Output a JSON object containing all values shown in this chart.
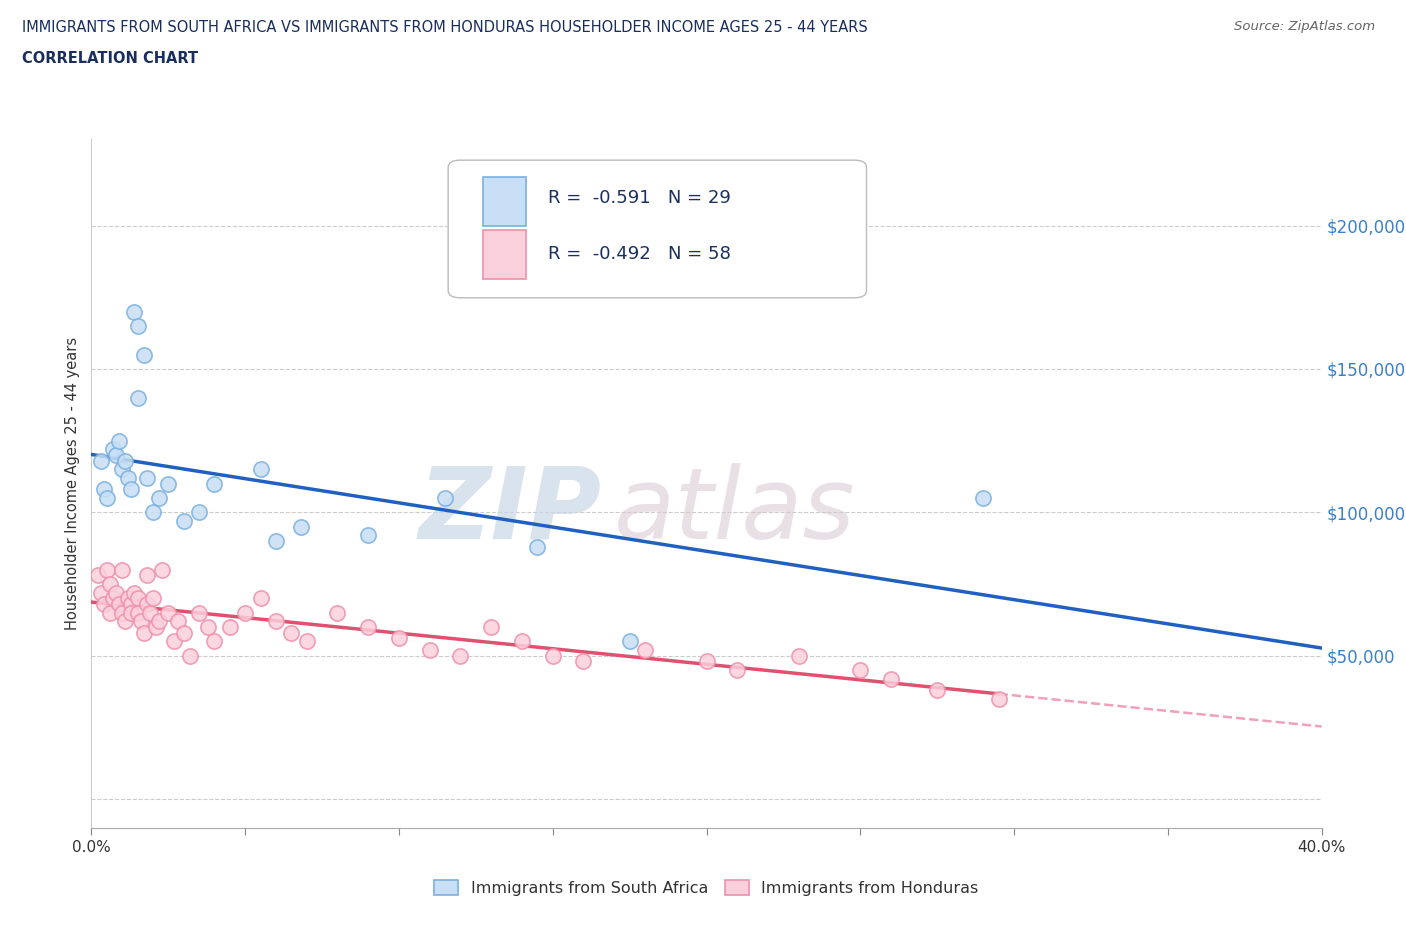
{
  "title_line1": "IMMIGRANTS FROM SOUTH AFRICA VS IMMIGRANTS FROM HONDURAS HOUSEHOLDER INCOME AGES 25 - 44 YEARS",
  "title_line2": "CORRELATION CHART",
  "source_text": "Source: ZipAtlas.com",
  "ylabel": "Householder Income Ages 25 - 44 years",
  "watermark_part1": "ZIP",
  "watermark_part2": "atlas",
  "xlim": [
    0.0,
    0.4
  ],
  "ylim": [
    -10000,
    230000
  ],
  "ytick_values": [
    0,
    50000,
    100000,
    150000,
    200000
  ],
  "ytick_labels": [
    "",
    "$50,000",
    "$100,000",
    "$150,000",
    "$200,000"
  ],
  "xtick_positions": [
    0.0,
    0.05,
    0.1,
    0.15,
    0.2,
    0.25,
    0.3,
    0.35,
    0.4
  ],
  "grid_color": "#cccccc",
  "sa_dot_face": "#c8dff5",
  "sa_dot_edge": "#7ab0e0",
  "hond_dot_face": "#fad0dc",
  "hond_dot_edge": "#f090aa",
  "sa_line_color": "#2060c0",
  "hond_line_color": "#e05070",
  "hond_dash_color": "#f0a0b8",
  "sa_R": -0.591,
  "sa_N": 29,
  "hond_R": -0.492,
  "hond_N": 58,
  "legend_label_sa": "Immigrants from South Africa",
  "legend_label_hond": "Immigrants from Honduras",
  "title_color": "#1a2e5e",
  "yaxis_tick_color": "#3a80cc",
  "text_color": "#333333",
  "source_color": "#666666",
  "south_africa_x": [
    0.003,
    0.004,
    0.005,
    0.007,
    0.008,
    0.009,
    0.01,
    0.011,
    0.012,
    0.013,
    0.014,
    0.015,
    0.015,
    0.017,
    0.018,
    0.02,
    0.022,
    0.025,
    0.03,
    0.035,
    0.04,
    0.055,
    0.06,
    0.068,
    0.09,
    0.115,
    0.145,
    0.175,
    0.29
  ],
  "south_africa_y": [
    118000,
    108000,
    105000,
    122000,
    120000,
    125000,
    115000,
    118000,
    112000,
    108000,
    170000,
    165000,
    140000,
    155000,
    112000,
    100000,
    105000,
    110000,
    97000,
    100000,
    110000,
    115000,
    90000,
    95000,
    92000,
    105000,
    88000,
    55000,
    105000
  ],
  "honduras_x": [
    0.002,
    0.003,
    0.004,
    0.005,
    0.006,
    0.006,
    0.007,
    0.008,
    0.009,
    0.01,
    0.01,
    0.011,
    0.012,
    0.013,
    0.013,
    0.014,
    0.015,
    0.015,
    0.016,
    0.017,
    0.018,
    0.018,
    0.019,
    0.02,
    0.021,
    0.022,
    0.023,
    0.025,
    0.027,
    0.028,
    0.03,
    0.032,
    0.035,
    0.038,
    0.04,
    0.045,
    0.05,
    0.055,
    0.06,
    0.065,
    0.07,
    0.08,
    0.09,
    0.1,
    0.11,
    0.12,
    0.13,
    0.14,
    0.15,
    0.16,
    0.18,
    0.2,
    0.21,
    0.23,
    0.25,
    0.26,
    0.275,
    0.295
  ],
  "honduras_y": [
    78000,
    72000,
    68000,
    80000,
    75000,
    65000,
    70000,
    72000,
    68000,
    65000,
    80000,
    62000,
    70000,
    68000,
    65000,
    72000,
    70000,
    65000,
    62000,
    58000,
    68000,
    78000,
    65000,
    70000,
    60000,
    62000,
    80000,
    65000,
    55000,
    62000,
    58000,
    50000,
    65000,
    60000,
    55000,
    60000,
    65000,
    70000,
    62000,
    58000,
    55000,
    65000,
    60000,
    56000,
    52000,
    50000,
    60000,
    55000,
    50000,
    48000,
    52000,
    48000,
    45000,
    50000,
    45000,
    42000,
    38000,
    35000
  ]
}
